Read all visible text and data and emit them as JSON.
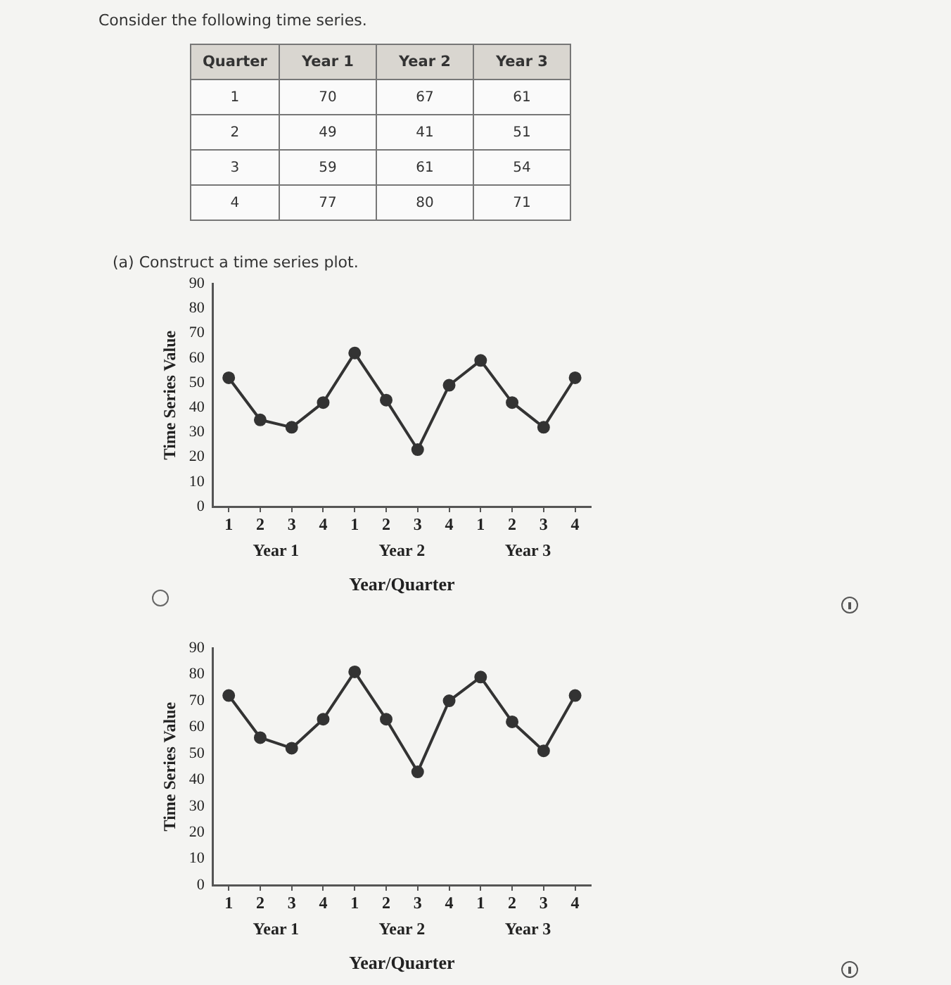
{
  "chart_data": [
    {
      "type": "heatmap",
      "title": "Consider the following time series.",
      "ylabel": "Quarter",
      "categories": [
        "Year 1",
        "Year 2",
        "Year 3"
      ],
      "y_categories": [
        "1",
        "2",
        "3",
        "4"
      ],
      "cells": [
        [
          70,
          67,
          61
        ],
        [
          49,
          41,
          51
        ],
        [
          59,
          61,
          54
        ],
        [
          77,
          80,
          71
        ]
      ],
      "data_labels": true
    },
    {
      "type": "line",
      "title": "(a) Construct a time series plot.",
      "xlabel": "Year/Quarter",
      "ylabel": "Time Series Value",
      "categories": [
        "1",
        "2",
        "3",
        "4",
        "1",
        "2",
        "3",
        "4",
        "1",
        "2",
        "3",
        "4"
      ],
      "values": [
        52,
        35,
        32,
        42,
        62,
        43,
        23,
        49,
        59,
        42,
        32,
        52
      ],
      "color": "#333333",
      "annotations": [
        "Year 1",
        "Year 2",
        "Year 3"
      ],
      "ylim": [
        0,
        90
      ],
      "yticks": [
        0,
        10,
        20,
        30,
        40,
        50,
        60,
        70,
        80,
        90
      ],
      "marker": "circle"
    },
    {
      "type": "line",
      "xlabel": "Year/Quarter",
      "ylabel": "Time Series Value",
      "categories": [
        "1",
        "2",
        "3",
        "4",
        "1",
        "2",
        "3",
        "4",
        "1",
        "2",
        "3",
        "4"
      ],
      "values": [
        72,
        56,
        52,
        63,
        81,
        63,
        43,
        70,
        79,
        62,
        51,
        72
      ],
      "color": "#333333",
      "annotations": [
        "Year 1",
        "Year 2",
        "Year 3"
      ],
      "ylim": [
        0,
        90
      ],
      "yticks": [
        0,
        10,
        20,
        30,
        40,
        50,
        60,
        70,
        80,
        90
      ],
      "marker": "circle"
    }
  ]
}
